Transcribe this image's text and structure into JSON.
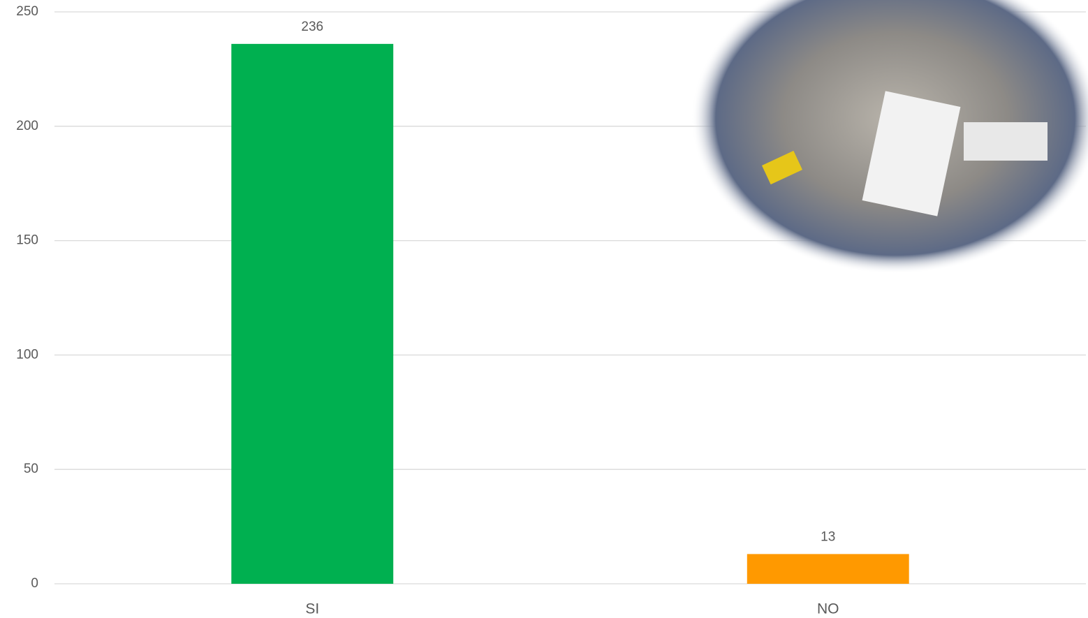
{
  "chart_data": {
    "type": "bar",
    "categories": [
      "SI",
      "NO"
    ],
    "values": [
      236,
      13
    ],
    "colors": [
      "#00b050",
      "#ff9900"
    ],
    "ylim": [
      0,
      250
    ],
    "yticks": [
      0,
      50,
      100,
      150,
      200,
      250
    ],
    "grid": true
  }
}
